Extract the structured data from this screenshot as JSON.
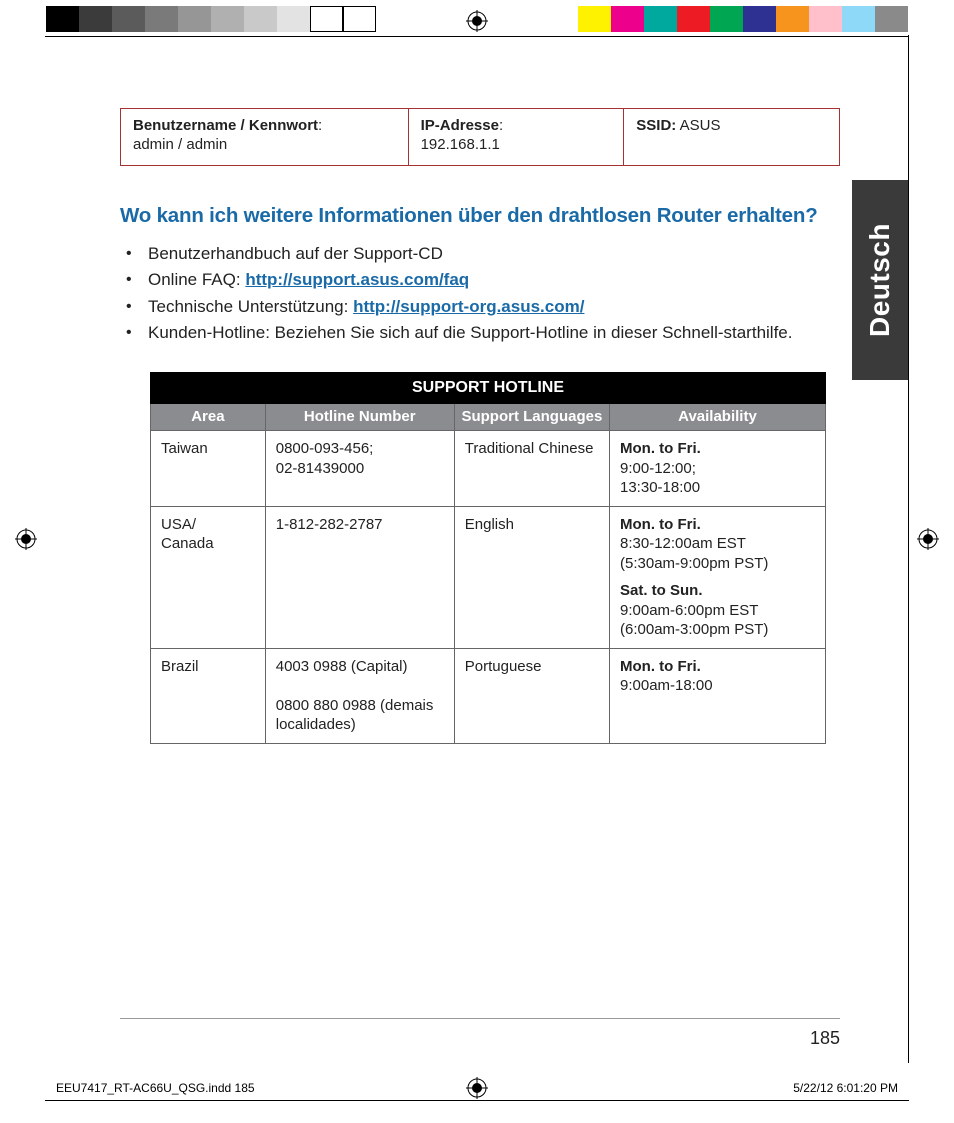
{
  "colorbar": {
    "left": [
      "#000000",
      "#3b3b3b",
      "#5b5b5b",
      "#7a7a7a",
      "#969696",
      "#b0b0b0",
      "#c9c9c9",
      "#e3e3e3",
      "#ffffff",
      "#ffffff"
    ],
    "right": [
      "#fff200",
      "#ec008c",
      "#00a99d",
      "#ed1c24",
      "#00a651",
      "#2e3192",
      "#f7941d",
      "#ffc0cb",
      "#8ed8f8",
      "#8a8a8a"
    ]
  },
  "info": {
    "c1_label": "Benutzername / Kennwort",
    "c1_val": "admin / admin",
    "c2_label": "IP-Adresse",
    "c2_val": "192.168.1.1",
    "c3_label": "SSID:",
    "c3_val": "ASUS"
  },
  "heading": "Wo kann ich weitere Informationen über den drahtlosen Router erhalten?",
  "bullets": {
    "b1": "Benutzerhandbuch auf der Support-CD",
    "b2_pre": "Online FAQ: ",
    "b2_link": "http://support.asus.com/faq",
    "b3_pre": "Technische Unterstützung: ",
    "b3_link": "http://support-org.asus.com/",
    "b4": "Kunden-Hotline: Beziehen Sie sich auf die Support-Hotline in dieser Schnell-starthilfe."
  },
  "hotline": {
    "title": "SUPPORT HOTLINE",
    "headers": {
      "h1": "Area",
      "h2": "Hotline Number",
      "h3": "Support Languages",
      "h4": "Availability"
    },
    "rows": [
      {
        "area": "Taiwan",
        "number": "0800-093-456;\n02-81439000",
        "lang": "Traditional Chinese",
        "avail": [
          {
            "title": "Mon. to Fri.",
            "lines": "9:00-12:00;\n13:30-18:00"
          }
        ]
      },
      {
        "area": "USA/\nCanada",
        "number": "1-812-282-2787",
        "lang": "English",
        "avail": [
          {
            "title": "Mon. to Fri.",
            "lines": "8:30-12:00am EST\n(5:30am-9:00pm PST)"
          },
          {
            "title": "Sat. to Sun.",
            "lines": "9:00am-6:00pm EST\n(6:00am-3:00pm PST)"
          }
        ]
      },
      {
        "area": "Brazil",
        "number": "4003 0988 (Capital)\n\n0800 880 0988 (demais localidades)",
        "lang": "Portuguese",
        "avail": [
          {
            "title": "Mon. to Fri.",
            "lines": "9:00am-18:00"
          }
        ]
      }
    ]
  },
  "sidetab": "Deutsch",
  "page_number": "185",
  "footer": {
    "left": "EEU7417_RT-AC66U_QSG.indd   185",
    "right": "5/22/12   6:01:20 PM"
  },
  "col_widths": {
    "c1": "17%",
    "c2": "28%",
    "c3": "23%",
    "c4": "32%"
  },
  "info_widths": {
    "c1": "40%",
    "c2": "30%",
    "c3": "30%"
  }
}
